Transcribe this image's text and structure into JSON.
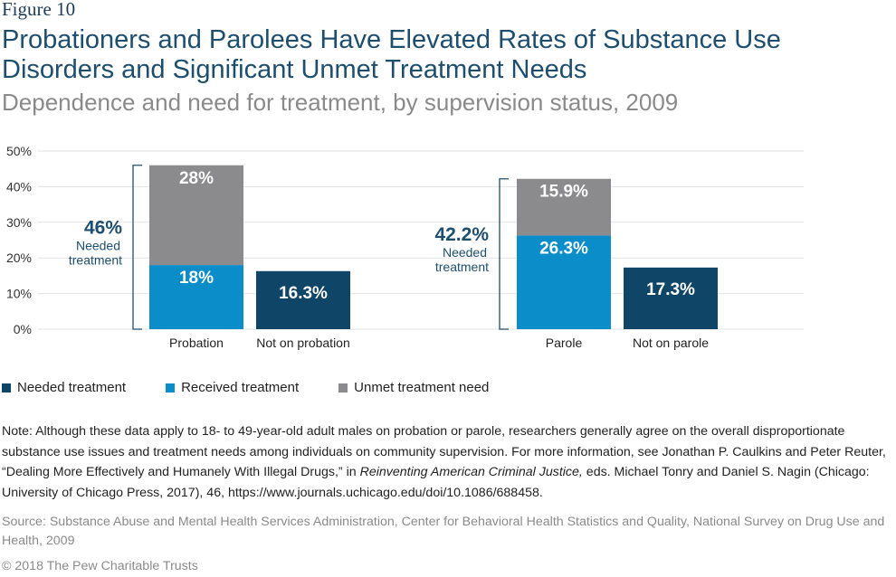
{
  "figure_label": "Figure 10",
  "title": "Probationers and Parolees Have Elevated Rates of Substance Use Disorders and Significant Unmet Treatment Needs",
  "subtitle": "Dependence and need for treatment, by supervision status, 2009",
  "colors": {
    "needed": "#0f4566",
    "received": "#0a8dc8",
    "unmet": "#8b8b8d",
    "annotation": "#1d4e6e",
    "axis_text": "#333333",
    "grid": "#e2e2e2"
  },
  "chart_data": {
    "type": "bar",
    "stacked": true,
    "ylim": [
      0,
      50
    ],
    "yticks": [
      "0%",
      "10%",
      "20%",
      "30%",
      "40%",
      "50%"
    ],
    "ytick_values": [
      0,
      10,
      20,
      30,
      40,
      50
    ],
    "grid": true,
    "categories": [
      "Probation",
      "Not on probation",
      "Parole",
      "Not on parole"
    ],
    "series": [
      {
        "name": "Needed treatment",
        "key": "needed",
        "values": [
          null,
          16.3,
          null,
          17.3
        ],
        "labels": [
          null,
          "16.3%",
          null,
          "17.3%"
        ]
      },
      {
        "name": "Received treatment",
        "key": "received",
        "values": [
          18,
          null,
          26.3,
          null
        ],
        "labels": [
          "18%",
          null,
          "26.3%",
          null
        ]
      },
      {
        "name": "Unmet treatment need",
        "key": "unmet",
        "values": [
          28,
          null,
          15.9,
          null
        ],
        "labels": [
          "28%",
          null,
          "15.9%",
          null
        ]
      }
    ],
    "annotations": [
      {
        "category": "Probation",
        "value": "46%",
        "line1": "Needed",
        "line2": "treatment",
        "total": 46
      },
      {
        "category": "Parole",
        "value": "42.2%",
        "line1": "Needed",
        "line2": "treatment",
        "total": 42.2
      }
    ]
  },
  "legend": [
    {
      "label": "Needed treatment",
      "key": "needed"
    },
    {
      "label": "Received treatment",
      "key": "received"
    },
    {
      "label": "Unmet treatment need",
      "key": "unmet"
    }
  ],
  "note": {
    "before": "Note: Although these data apply to 18- to 49-year-old adult males on probation or parole, researchers generally agree on the overall disproportionate substance use issues and treatment needs among individuals on community supervision. For more information, see Jonathan P. Caulkins and Peter Reuter, “Dealing More Effectively and Humanely With Illegal Drugs,” in ",
    "italic": "Reinventing American Criminal Justice,",
    "after": " eds. Michael Tonry and Daniel S. Nagin (Chicago: University of Chicago Press, 2017), 46, https://www.journals.uchicago.edu/doi/10.1086/688458."
  },
  "source": "Source: Substance Abuse and Mental Health Services Administration, Center for Behavioral Health Statistics and Quality, National Survey on Drug Use and Health, 2009",
  "copyright": "© 2018 The Pew Charitable Trusts"
}
